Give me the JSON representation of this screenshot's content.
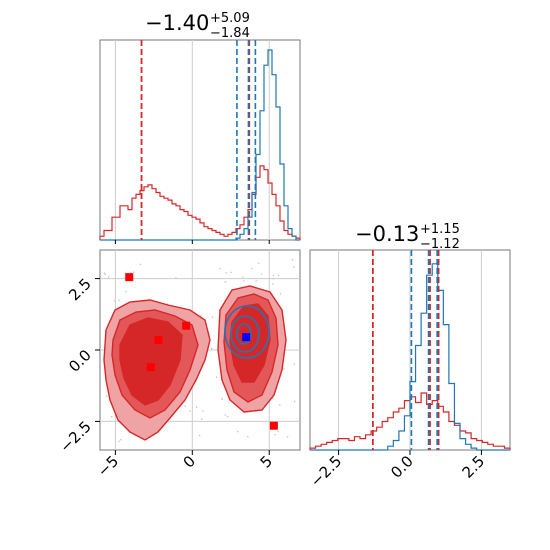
{
  "chart_data": {
    "type": "corner",
    "colors": {
      "red": "#d62728",
      "blue": "#1f77b4",
      "red_fill_light": "#f0a3a5",
      "red_fill_mid": "#e45759",
      "red_fill_dark": "#d62728",
      "marker_red": "#ff0000",
      "marker_blue": "#0000ff",
      "grid": "#cccccc"
    },
    "panels": {
      "top": {
        "title_main": "−1.40",
        "title_sup": "+5.09",
        "title_sub": "−1.84",
        "xlim": [
          -6.0,
          7.0
        ],
        "red_quantiles": [
          -3.3,
          3.7
        ],
        "blue_quantiles": [
          2.9,
          3.65,
          4.1
        ],
        "red_hist": [
          0.02,
          0.05,
          0.05,
          0.12,
          0.12,
          0.18,
          0.18,
          0.16,
          0.22,
          0.24,
          0.26,
          0.28,
          0.29,
          0.27,
          0.25,
          0.23,
          0.22,
          0.21,
          0.19,
          0.18,
          0.16,
          0.15,
          0.13,
          0.12,
          0.11,
          0.09,
          0.07,
          0.06,
          0.05,
          0.04,
          0.03,
          0.02,
          0.03,
          0.04,
          0.06,
          0.08,
          0.12,
          0.16,
          0.24,
          0.33,
          0.39,
          0.37,
          0.3,
          0.24,
          0.18,
          0.1,
          0.05,
          0.03,
          0.02,
          0.01
        ],
        "blue_hist": [
          0.0,
          0.0,
          0.0,
          0.0,
          0.0,
          0.0,
          0.0,
          0.0,
          0.0,
          0.0,
          0.0,
          0.0,
          0.0,
          0.0,
          0.0,
          0.0,
          0.0,
          0.0,
          0.0,
          0.0,
          0.0,
          0.0,
          0.0,
          0.0,
          0.0,
          0.0,
          0.0,
          0.0,
          0.0,
          0.0,
          0.0,
          0.0,
          0.0,
          0.0,
          0.01,
          0.03,
          0.06,
          0.12,
          0.25,
          0.45,
          0.68,
          0.92,
          1.0,
          0.87,
          0.7,
          0.4,
          0.18,
          0.06,
          0.02,
          0.0
        ]
      },
      "scatter": {
        "xlim": [
          -6.0,
          7.0
        ],
        "ylim": [
          -3.5,
          3.5
        ],
        "xticks": [
          -5,
          0,
          5
        ],
        "xtick_labels": [
          "−5",
          "0",
          "5"
        ],
        "yticks": [
          2.5,
          0.0,
          -2.5
        ],
        "ytick_labels": [
          "2.5",
          "0.0",
          "−2.5"
        ],
        "red_markers": [
          [
            -4.1,
            2.55
          ],
          [
            -2.2,
            0.35
          ],
          [
            -0.4,
            0.85
          ],
          [
            -2.7,
            -0.6
          ],
          [
            5.3,
            -2.65
          ]
        ],
        "blue_marker": [
          3.5,
          0.45
        ]
      },
      "bottom_right": {
        "title_main": "−0.13",
        "title_sup": "+1.15",
        "title_sub": "−1.12",
        "xlim": [
          -3.5,
          3.5
        ],
        "xticks": [
          -2.5,
          0.0,
          2.5
        ],
        "xtick_labels": [
          "−2.5",
          "0.0",
          "2.5"
        ],
        "red_quantiles": [
          -1.3,
          0.7,
          1.0
        ],
        "blue_quantiles": [
          0.05,
          0.65,
          0.95
        ],
        "red_hist": [
          0.01,
          0.02,
          0.03,
          0.04,
          0.05,
          0.06,
          0.06,
          0.05,
          0.07,
          0.06,
          0.08,
          0.1,
          0.12,
          0.15,
          0.17,
          0.2,
          0.22,
          0.26,
          0.28,
          0.25,
          0.3,
          0.24,
          0.26,
          0.23,
          0.2,
          0.15,
          0.13,
          0.1,
          0.09,
          0.06,
          0.05,
          0.04,
          0.03,
          0.02,
          0.02,
          0.01
        ],
        "blue_hist": [
          0.0,
          0.0,
          0.0,
          0.0,
          0.0,
          0.0,
          0.0,
          0.0,
          0.0,
          0.0,
          0.0,
          0.0,
          0.0,
          0.0,
          0.02,
          0.05,
          0.1,
          0.18,
          0.36,
          0.55,
          0.72,
          0.92,
          0.98,
          0.84,
          0.66,
          0.35,
          0.14,
          0.06,
          0.03,
          0.01,
          0.0,
          0.0,
          0.0,
          0.0,
          0.0,
          0.0
        ]
      }
    }
  }
}
